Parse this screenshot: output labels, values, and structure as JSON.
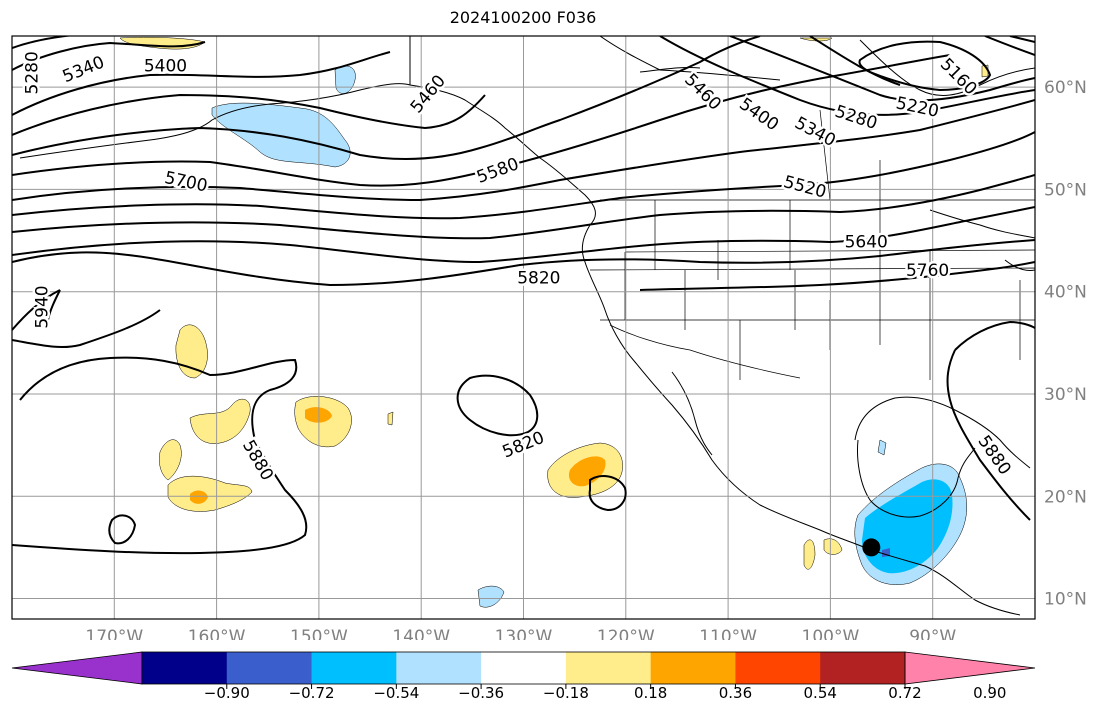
{
  "title": "2024100200 F036",
  "map": {
    "lon_range": [
      -180,
      -80
    ],
    "lat_range": [
      8,
      65
    ],
    "lon_ticks": [
      {
        "lon": -170,
        "label": "170°W"
      },
      {
        "lon": -160,
        "label": "160°W"
      },
      {
        "lon": -150,
        "label": "150°W"
      },
      {
        "lon": -140,
        "label": "140°W"
      },
      {
        "lon": -130,
        "label": "130°W"
      },
      {
        "lon": -120,
        "label": "120°W"
      },
      {
        "lon": -110,
        "label": "110°W"
      },
      {
        "lon": -100,
        "label": "100°W"
      },
      {
        "lon": -90,
        "label": "90°W"
      }
    ],
    "lat_ticks": [
      {
        "lat": 10,
        "label": "10°N"
      },
      {
        "lat": 20,
        "label": "20°N"
      },
      {
        "lat": 30,
        "label": "30°N"
      },
      {
        "lat": 40,
        "label": "40°N"
      },
      {
        "lat": 50,
        "label": "50°N"
      },
      {
        "lat": 60,
        "label": "60°N"
      }
    ],
    "gridlines": true,
    "tick_label_color": "#808080",
    "contour_labels": [
      {
        "text": "5280",
        "lon": -178,
        "lat": 61.4,
        "rot": -90
      },
      {
        "text": "5340",
        "lon": -173,
        "lat": 61.7,
        "rot": -22
      },
      {
        "text": "5400",
        "lon": -165,
        "lat": 62.0,
        "rot": 0
      },
      {
        "text": "5460",
        "lon": -139.3,
        "lat": 59.3,
        "rot": -50
      },
      {
        "text": "5580",
        "lon": -132.5,
        "lat": 51.8,
        "rot": -20
      },
      {
        "text": "5700",
        "lon": -163,
        "lat": 50.7,
        "rot": 12
      },
      {
        "text": "5820",
        "lon": -128.5,
        "lat": 41.3,
        "rot": 0
      },
      {
        "text": "5940",
        "lon": -177,
        "lat": 38.5,
        "rot": -90
      },
      {
        "text": "5880",
        "lon": -156,
        "lat": 23.5,
        "rot": 60
      },
      {
        "text": "5820",
        "lon": -130,
        "lat": 25.0,
        "rot": -22
      },
      {
        "text": "5460",
        "lon": -112.5,
        "lat": 59.5,
        "rot": 45
      },
      {
        "text": "5400",
        "lon": -107,
        "lat": 57.3,
        "rot": 35
      },
      {
        "text": "5340",
        "lon": -101.5,
        "lat": 55.6,
        "rot": 28
      },
      {
        "text": "5280",
        "lon": -97.5,
        "lat": 57.0,
        "rot": 18
      },
      {
        "text": "5220",
        "lon": -91.5,
        "lat": 58.0,
        "rot": 12
      },
      {
        "text": "5160",
        "lon": -87.5,
        "lat": 61.0,
        "rot": 45
      },
      {
        "text": "5520",
        "lon": -102.5,
        "lat": 50.2,
        "rot": 15
      },
      {
        "text": "5640",
        "lon": -96.5,
        "lat": 44.8,
        "rot": 0
      },
      {
        "text": "5760",
        "lon": -90.5,
        "lat": 42.0,
        "rot": 0
      },
      {
        "text": "5880",
        "lon": -84,
        "lat": 24.0,
        "rot": 55
      }
    ],
    "marker": {
      "name": "location-marker",
      "lon": -96,
      "lat": 15.0,
      "color": "#000000"
    }
  },
  "colorbar": {
    "colors": [
      "#9932cc",
      "#00008b",
      "#3a5fcd",
      "#00bfff",
      "#b0e2ff",
      "#ffffff",
      "#ffec8b",
      "#ffa500",
      "#ff4500",
      "#b22222",
      "#ff82ab"
    ],
    "tick_labels": [
      "−0.90",
      "−0.72",
      "−0.54",
      "−0.36",
      "−0.18",
      "0.18",
      "0.36",
      "0.54",
      "0.72",
      "0.90"
    ],
    "extend": "both"
  }
}
